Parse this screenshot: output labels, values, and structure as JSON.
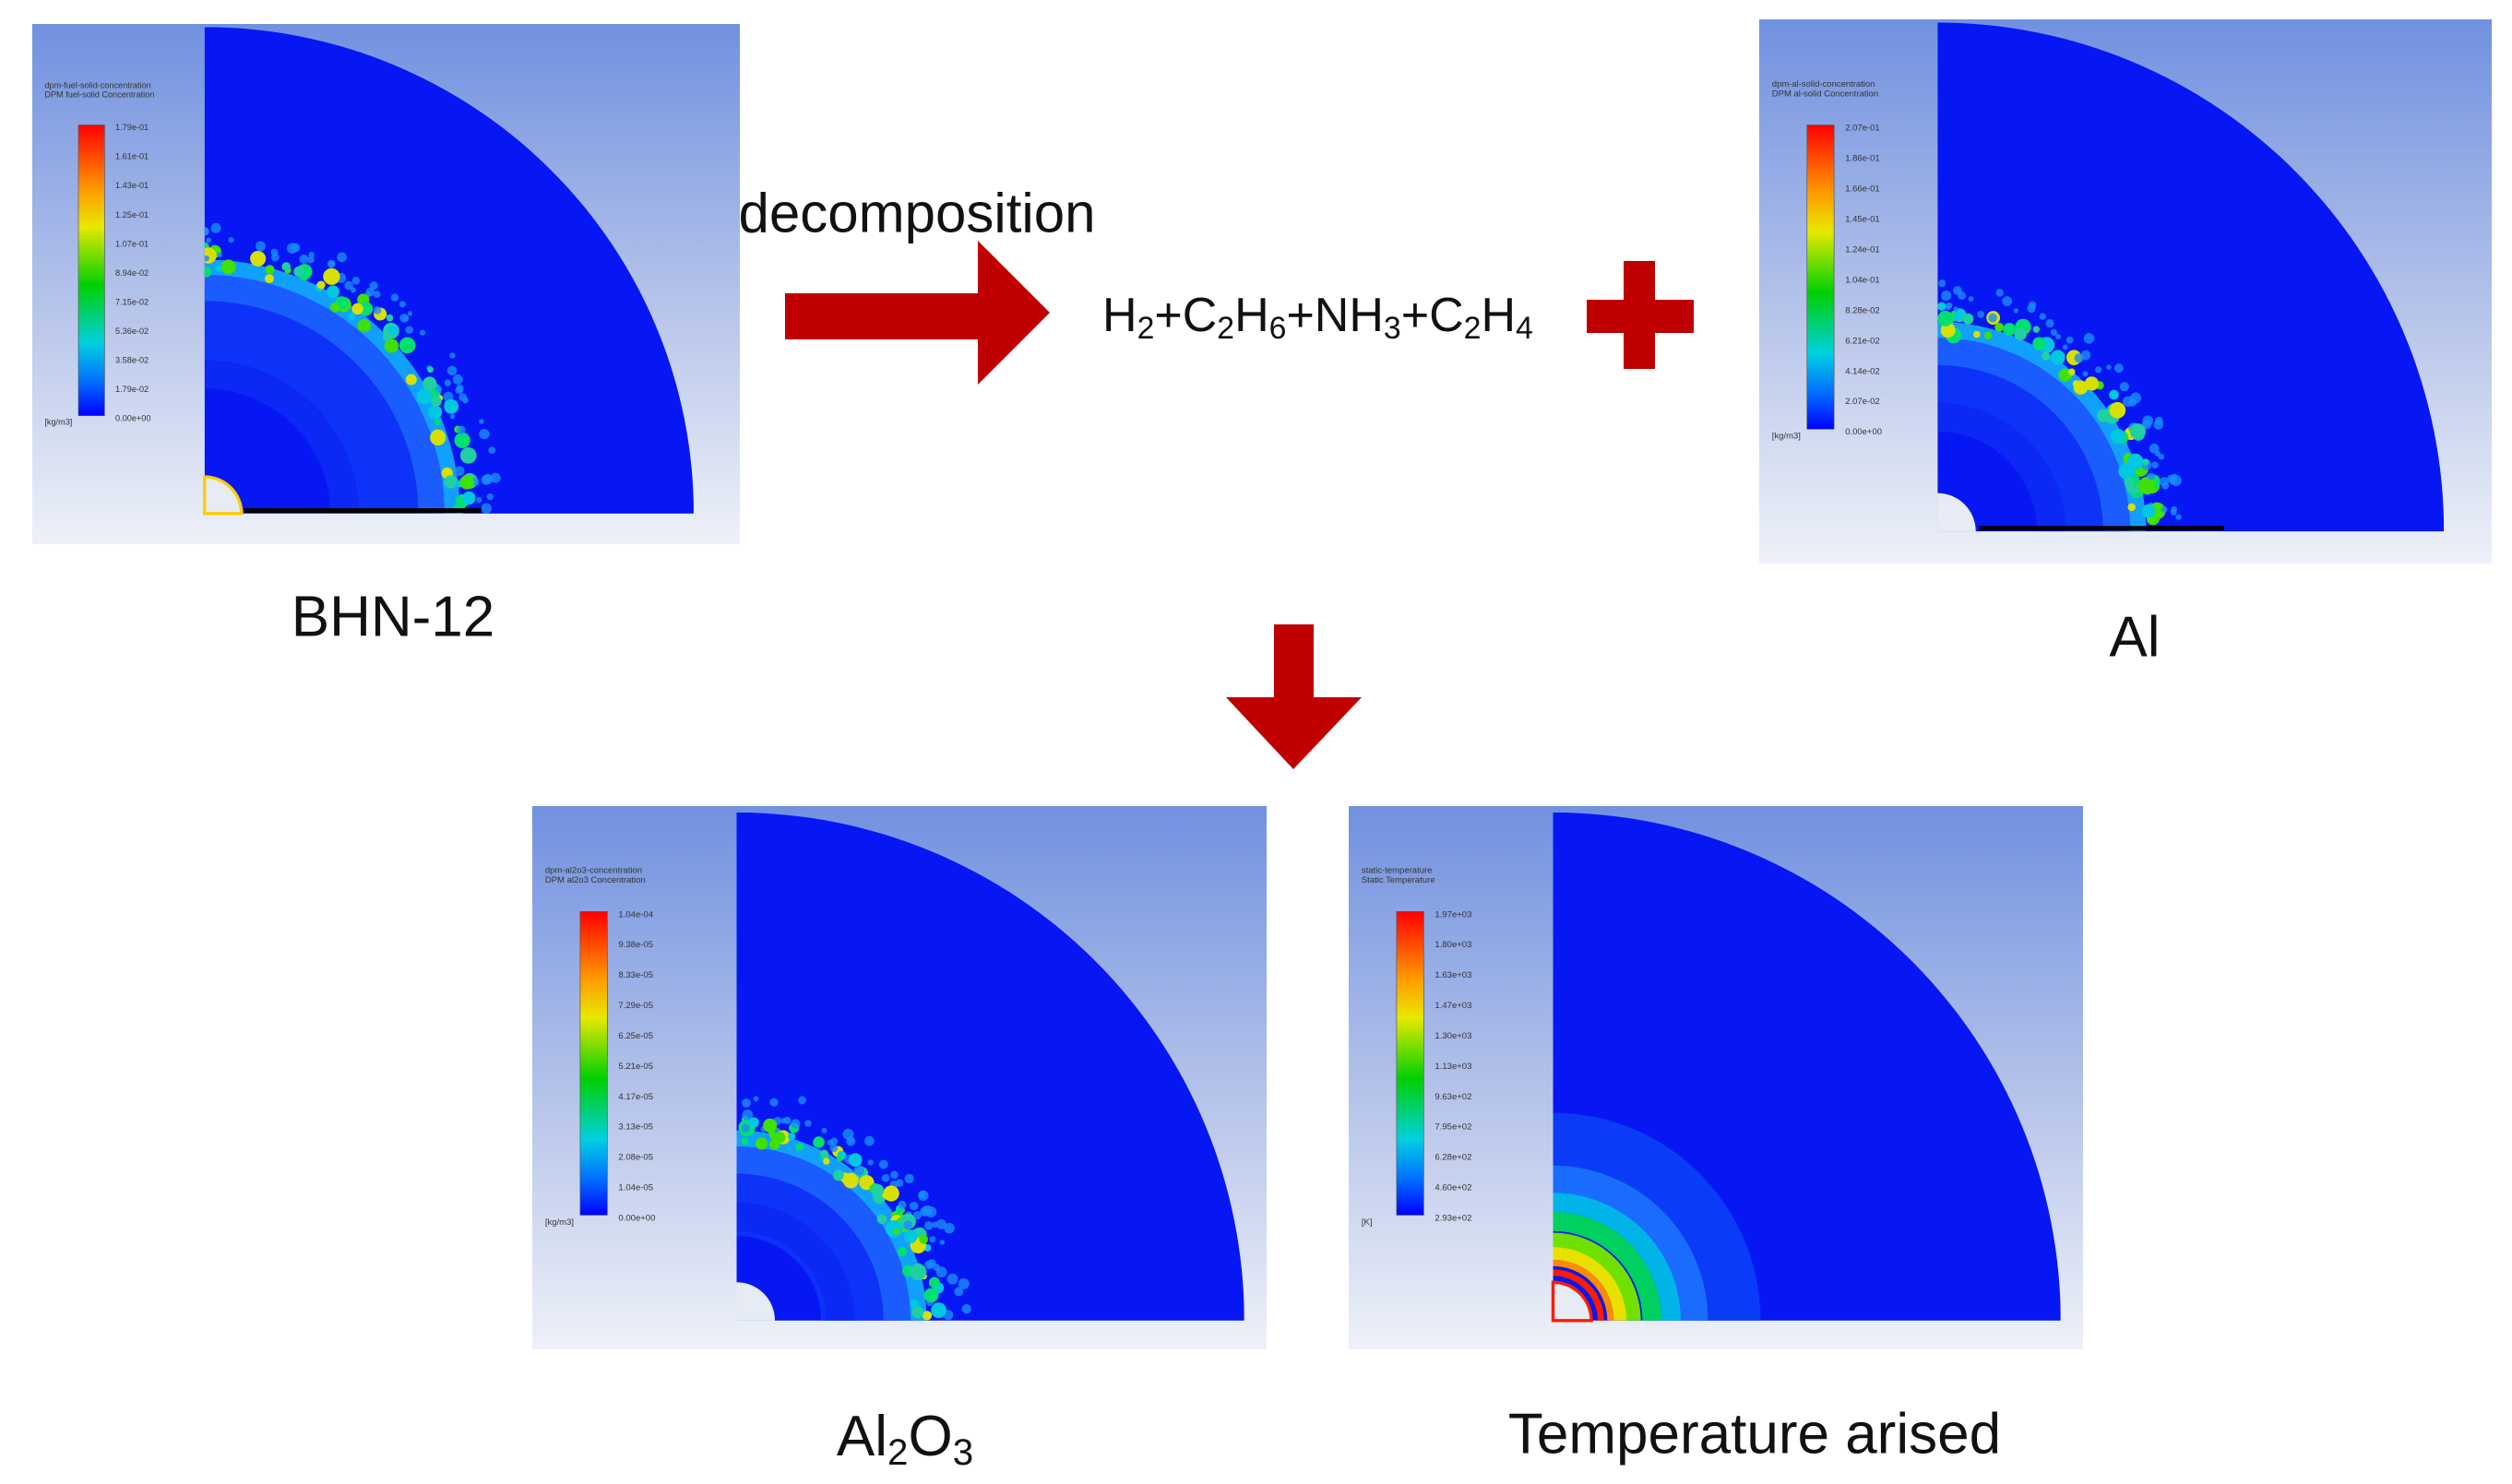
{
  "decomposition_label": "decomposition",
  "equation": [
    [
      "H",
      "2"
    ],
    [
      "+C",
      "2"
    ],
    [
      "H",
      "6"
    ],
    [
      "+NH",
      "3"
    ],
    [
      "+C",
      "2"
    ],
    [
      "H",
      "4"
    ]
  ],
  "panels": [
    {
      "legend_title": [
        "dpm-fuel-solid-concentration",
        "DPM fuel-solid Concentration"
      ],
      "legend_ticks": [
        "1.79e-01",
        "1.61e-01",
        "1.43e-01",
        "1.25e-01",
        "1.07e-01",
        "8.94e-02",
        "7.15e-02",
        "5.36e-02",
        "3.58e-02",
        "1.79e-02",
        "0.00e+00"
      ],
      "unit": "[kg/m3]",
      "caption": "BHN-12"
    },
    {
      "legend_title": [
        "dpm-al-solid-concentration",
        "DPM al-solid Concentration"
      ],
      "legend_ticks": [
        "2.07e-01",
        "1.86e-01",
        "1.66e-01",
        "1.45e-01",
        "1.24e-01",
        "1.04e-01",
        "8.28e-02",
        "6.21e-02",
        "4.14e-02",
        "2.07e-02",
        "0.00e+00"
      ],
      "unit": "[kg/m3]",
      "caption": "Al"
    },
    {
      "legend_title": [
        "dpm-al2o3-concentration",
        "DPM al2o3 Concentration"
      ],
      "legend_ticks": [
        "1.04e-04",
        "9.38e-05",
        "8.33e-05",
        "7.29e-05",
        "6.25e-05",
        "5.21e-05",
        "4.17e-05",
        "3.13e-05",
        "2.08e-05",
        "1.04e-05",
        "0.00e+00"
      ],
      "unit": "[kg/m3]",
      "caption": [
        [
          "Al",
          "2"
        ],
        [
          "O",
          "3"
        ]
      ]
    },
    {
      "legend_title": [
        "static-temperature",
        "Static Temperature"
      ],
      "legend_ticks": [
        "1.97e+03",
        "1.80e+03",
        "1.63e+03",
        "1.47e+03",
        "1.30e+03",
        "1.13e+03",
        "9.63e+02",
        "7.95e+02",
        "6.28e+02",
        "4.60e+02",
        "2.93e+02"
      ],
      "unit": "[K]",
      "caption": "Temperature arised"
    }
  ]
}
